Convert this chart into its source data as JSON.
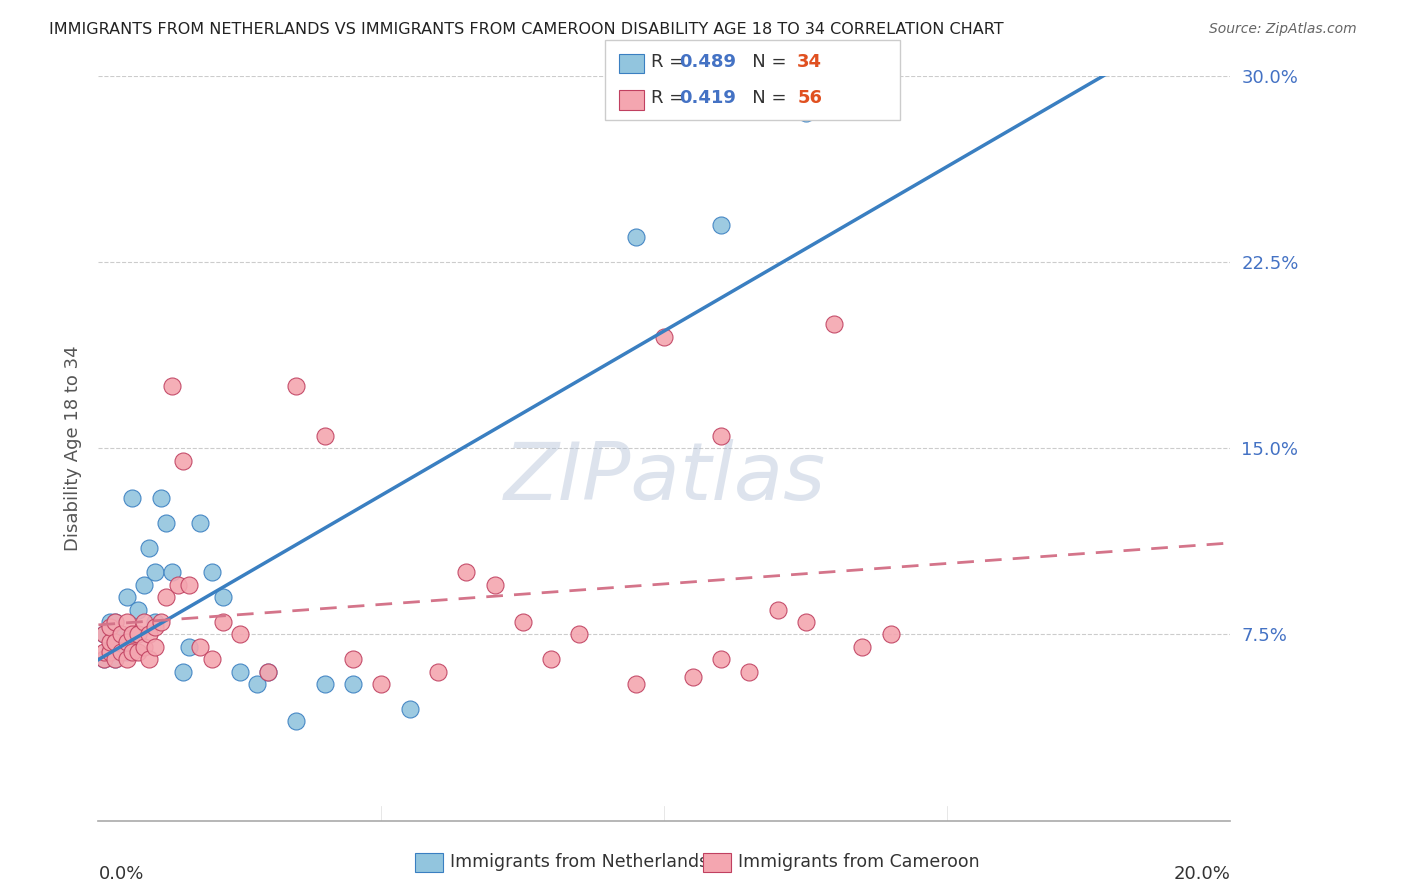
{
  "title": "IMMIGRANTS FROM NETHERLANDS VS IMMIGRANTS FROM CAMEROON DISABILITY AGE 18 TO 34 CORRELATION CHART",
  "source": "Source: ZipAtlas.com",
  "ylabel": "Disability Age 18 to 34",
  "legend_label1": "Immigrants from Netherlands",
  "legend_label2": "Immigrants from Cameroon",
  "r1": "0.489",
  "n1": "34",
  "r2": "0.419",
  "n2": "56",
  "color1": "#92c5de",
  "color2": "#f4a6b0",
  "trendline1_color": "#3a7fc1",
  "trendline2_color": "#d4748a",
  "xlim": [
    0.0,
    0.2
  ],
  "ylim": [
    0.0,
    0.3
  ],
  "yticks": [
    0.075,
    0.15,
    0.225,
    0.3
  ],
  "ytick_labels": [
    "7.5%",
    "15.0%",
    "22.5%",
    "30.0%"
  ],
  "watermark": "ZIPatlas",
  "nl_x": [
    0.001,
    0.001,
    0.002,
    0.002,
    0.003,
    0.003,
    0.004,
    0.004,
    0.005,
    0.005,
    0.006,
    0.007,
    0.008,
    0.009,
    0.01,
    0.01,
    0.011,
    0.012,
    0.013,
    0.015,
    0.016,
    0.018,
    0.02,
    0.022,
    0.025,
    0.028,
    0.03,
    0.035,
    0.04,
    0.045,
    0.055,
    0.095,
    0.11,
    0.125
  ],
  "nl_y": [
    0.065,
    0.075,
    0.07,
    0.08,
    0.065,
    0.08,
    0.07,
    0.075,
    0.068,
    0.09,
    0.13,
    0.085,
    0.095,
    0.11,
    0.08,
    0.1,
    0.13,
    0.12,
    0.1,
    0.06,
    0.07,
    0.12,
    0.1,
    0.09,
    0.06,
    0.055,
    0.06,
    0.04,
    0.055,
    0.055,
    0.045,
    0.235,
    0.24,
    0.285
  ],
  "cm_x": [
    0.001,
    0.001,
    0.001,
    0.002,
    0.002,
    0.002,
    0.003,
    0.003,
    0.003,
    0.004,
    0.004,
    0.005,
    0.005,
    0.005,
    0.006,
    0.006,
    0.007,
    0.007,
    0.008,
    0.008,
    0.009,
    0.009,
    0.01,
    0.01,
    0.011,
    0.012,
    0.013,
    0.014,
    0.015,
    0.016,
    0.018,
    0.02,
    0.022,
    0.025,
    0.03,
    0.035,
    0.04,
    0.045,
    0.05,
    0.06,
    0.065,
    0.07,
    0.075,
    0.08,
    0.085,
    0.095,
    0.1,
    0.105,
    0.11,
    0.11,
    0.115,
    0.12,
    0.125,
    0.13,
    0.135,
    0.14
  ],
  "cm_y": [
    0.065,
    0.068,
    0.075,
    0.068,
    0.072,
    0.078,
    0.065,
    0.072,
    0.08,
    0.068,
    0.075,
    0.065,
    0.072,
    0.08,
    0.068,
    0.075,
    0.068,
    0.075,
    0.07,
    0.08,
    0.065,
    0.075,
    0.07,
    0.078,
    0.08,
    0.09,
    0.175,
    0.095,
    0.145,
    0.095,
    0.07,
    0.065,
    0.08,
    0.075,
    0.06,
    0.175,
    0.155,
    0.065,
    0.055,
    0.06,
    0.1,
    0.095,
    0.08,
    0.065,
    0.075,
    0.055,
    0.195,
    0.058,
    0.065,
    0.155,
    0.06,
    0.085,
    0.08,
    0.2,
    0.07,
    0.075
  ]
}
